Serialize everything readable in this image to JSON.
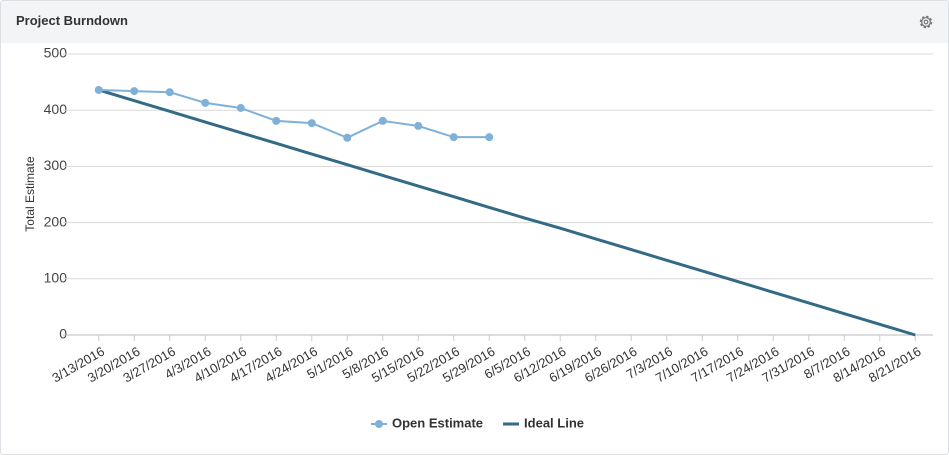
{
  "chart_data": {
    "type": "line",
    "title": "Project Burndown",
    "ylabel": "Total Estimate",
    "categories": [
      "3/13/2016",
      "3/20/2016",
      "3/27/2016",
      "4/3/2016",
      "4/10/2016",
      "4/17/2016",
      "4/24/2016",
      "5/1/2016",
      "5/8/2016",
      "5/15/2016",
      "5/22/2016",
      "5/29/2016",
      "6/5/2016",
      "6/12/2016",
      "6/19/2016",
      "6/26/2016",
      "7/3/2016",
      "7/10/2016",
      "7/17/2016",
      "7/24/2016",
      "7/31/2016",
      "8/7/2016",
      "8/14/2016",
      "8/21/2016"
    ],
    "series": [
      {
        "name": "Open Estimate",
        "color": "#7fb0d8",
        "markers": true,
        "values": [
          436,
          434,
          432,
          413,
          404,
          381,
          377,
          351,
          381,
          372,
          352,
          352,
          null,
          null,
          null,
          null,
          null,
          null,
          null,
          null,
          null,
          null,
          null,
          null
        ]
      },
      {
        "name": "Ideal Line",
        "color": "#336a87",
        "markers": false,
        "values": [
          436,
          417,
          398,
          379,
          360,
          341,
          322,
          303,
          284,
          265,
          246,
          227,
          208,
          190,
          171,
          152,
          133,
          114,
          95,
          76,
          57,
          38,
          19,
          0
        ]
      }
    ],
    "ylim": [
      0,
      500
    ],
    "yticks": [
      0,
      100,
      200,
      300,
      400,
      500
    ],
    "grid": true,
    "legend": "bottom"
  }
}
